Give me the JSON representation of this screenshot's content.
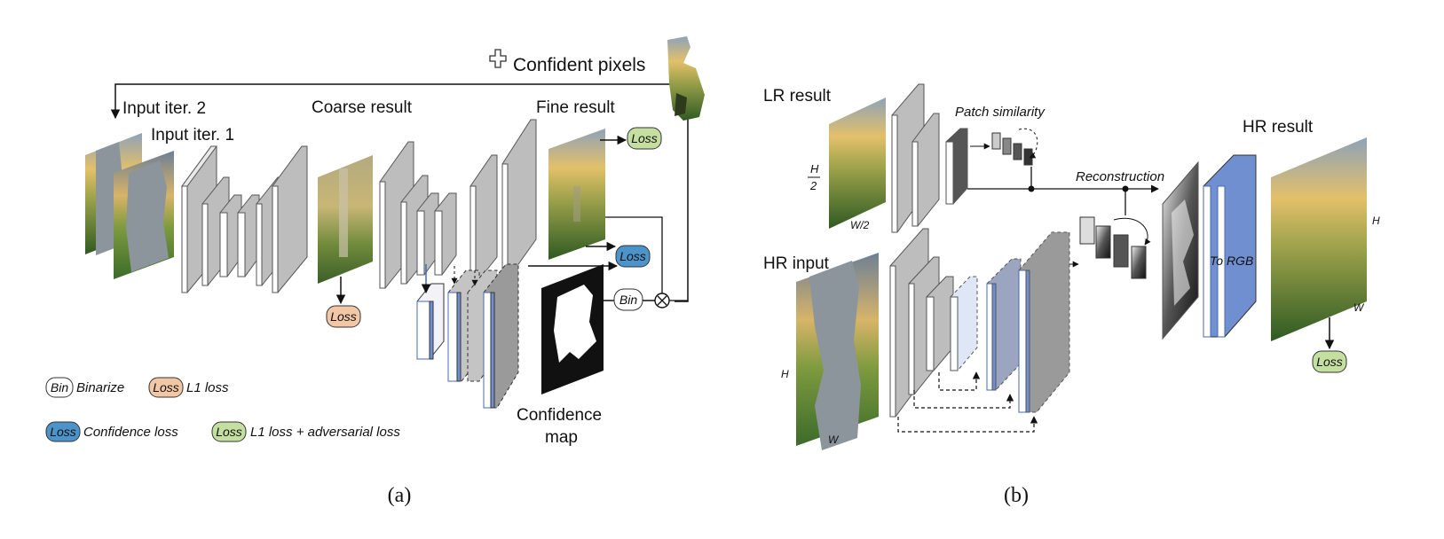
{
  "panel_a": {
    "confident_pixels": "Confident pixels",
    "input_iter2": "Input iter. 2",
    "input_iter1": "Input iter. 1",
    "coarse_result": "Coarse result",
    "fine_result": "Fine result",
    "confidence_map_line1": "Confidence",
    "confidence_map_line2": "map",
    "bin": "Bin",
    "loss": "Loss",
    "legend": {
      "bin_desc": "Binarize",
      "l1_desc": "L1 loss",
      "conf_desc": "Confidence loss",
      "adv_desc": "L1 loss + adversarial loss"
    },
    "caption": "(a)"
  },
  "panel_b": {
    "lr_result": "LR result",
    "hr_input": "HR input",
    "hr_result": "HR result",
    "patch_similarity": "Patch similarity",
    "reconstruction": "Reconstruction",
    "to_rgb": "To RGB",
    "h_over_2_top": "H",
    "h_over_2_bottom": "2",
    "w_over_2": "W/2",
    "h": "H",
    "w": "W",
    "loss": "Loss",
    "caption": "(b)"
  },
  "colors": {
    "loss_orange": "#f2c7a5",
    "loss_blue": "#4b93c9",
    "loss_green": "#c5dfa0",
    "layer_gray": "#d9d9d9",
    "layer_blue": "#6f8fd0"
  }
}
